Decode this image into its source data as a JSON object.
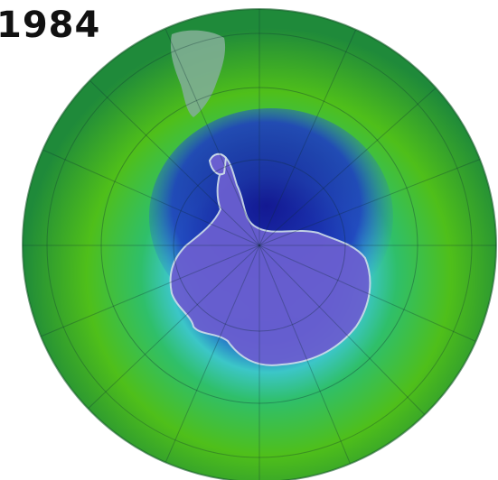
{
  "map": {
    "year": "1984",
    "projection": "south-polar-orthographic",
    "colors": {
      "background": "#ffffff",
      "outer_ring": "#1f8a3a",
      "mid_ring": "#4fbf1a",
      "inner_ring": "#2fbf6a",
      "cyan_band": "#3cc6c8",
      "ozone_hole_edge": "#1a55c8",
      "ozone_hole_core": "#1a1aa0",
      "antarctica_fill": "#6a5fd0",
      "land_outline": "#c9d8e8",
      "south_america": "#7fae93"
    }
  }
}
